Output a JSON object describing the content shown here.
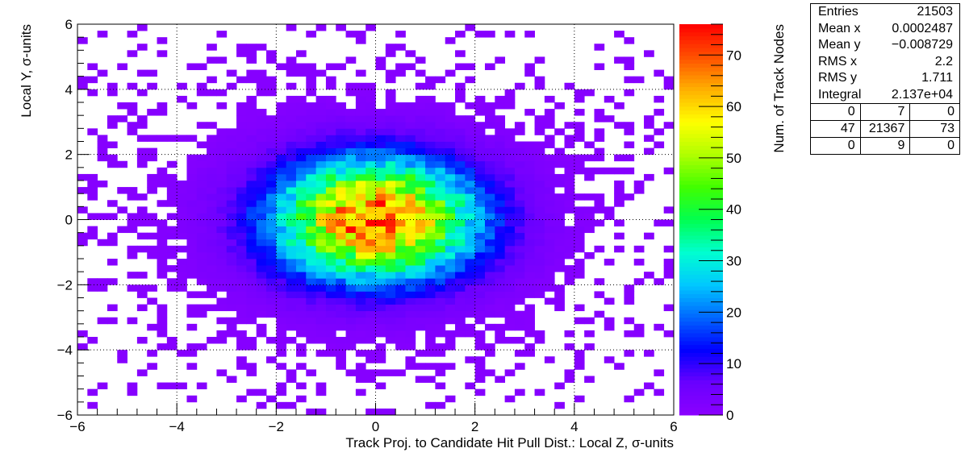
{
  "chart_data": {
    "type": "heatmap",
    "xlabel": "Track Proj. to Candidate Hit Pull Dist.: Local Z, σ-units",
    "ylabel": "Local Y, σ-units",
    "zlabel": "Num. of Track Nodes",
    "xlim": [
      -6,
      6
    ],
    "ylim": [
      -6,
      6
    ],
    "zlim": [
      0,
      76
    ],
    "nbins_x": 60,
    "nbins_y": 60,
    "x_ticks": [
      {
        "value": -6,
        "label": "−6"
      },
      {
        "value": -4,
        "label": "−4"
      },
      {
        "value": -2,
        "label": "−2"
      },
      {
        "value": 0,
        "label": "0"
      },
      {
        "value": 2,
        "label": "2"
      },
      {
        "value": 4,
        "label": "4"
      },
      {
        "value": 6,
        "label": "6"
      }
    ],
    "y_ticks": [
      {
        "value": -6,
        "label": "−6"
      },
      {
        "value": -4,
        "label": "−4"
      },
      {
        "value": -2,
        "label": "−2"
      },
      {
        "value": 0,
        "label": "0"
      },
      {
        "value": 2,
        "label": "2"
      },
      {
        "value": 4,
        "label": "4"
      },
      {
        "value": 6,
        "label": "6"
      }
    ],
    "z_ticks": [
      {
        "value": 0,
        "label": "0"
      },
      {
        "value": 10,
        "label": "10"
      },
      {
        "value": 20,
        "label": "20"
      },
      {
        "value": 30,
        "label": "30"
      },
      {
        "value": 40,
        "label": "40"
      },
      {
        "value": 50,
        "label": "50"
      },
      {
        "value": 60,
        "label": "60"
      },
      {
        "value": 70,
        "label": "70"
      }
    ],
    "grid": true,
    "distribution": {
      "peak": 76,
      "center": [
        0,
        0
      ],
      "rms_x": 2.2,
      "rms_y": 1.711
    },
    "colormap": [
      "#8b00ff",
      "#6a00ff",
      "#0000ff",
      "#0066ff",
      "#00c8ff",
      "#00ffd0",
      "#00ff50",
      "#40ff00",
      "#b0ff00",
      "#ffff00",
      "#ffb000",
      "#ff5000",
      "#ff0000"
    ]
  },
  "stats": {
    "rows": [
      {
        "label": "Entries",
        "value": "21503"
      },
      {
        "label": "Mean x",
        "value": "0.0002487"
      },
      {
        "label": "Mean y",
        "value": "−0.008729"
      },
      {
        "label": "RMS x",
        "value": "2.2"
      },
      {
        "label": "RMS y",
        "value": "1.711"
      },
      {
        "label": "Integral",
        "value": "2.137e+04"
      }
    ],
    "grid": [
      [
        "0",
        "7",
        "0"
      ],
      [
        "47",
        "21367",
        "73"
      ],
      [
        "0",
        "9",
        "0"
      ]
    ]
  }
}
